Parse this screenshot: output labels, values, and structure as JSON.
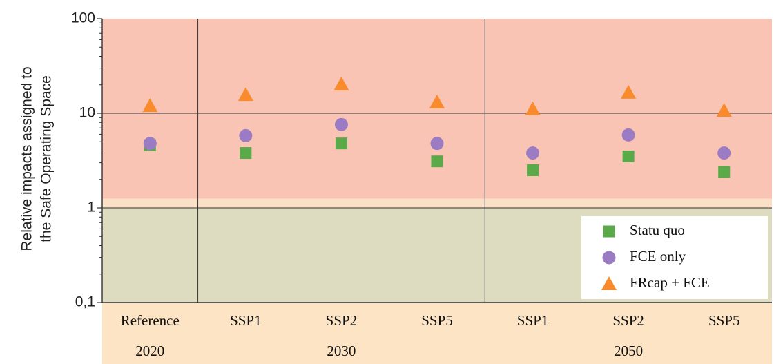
{
  "chart_data": {
    "type": "scatter",
    "ylabel": [
      "Relative impacts assigned to",
      "the Safe Operating Space"
    ],
    "groups": [
      {
        "name": "2020",
        "categories": [
          "Reference"
        ]
      },
      {
        "name": "2030",
        "categories": [
          "SSP1",
          "SSP2",
          "SSP5"
        ]
      },
      {
        "name": "2050",
        "categories": [
          "SSP1",
          "SSP2",
          "SSP5"
        ]
      }
    ],
    "series": [
      {
        "name": "Statu quo",
        "color": "#5aaa4a",
        "marker": "square",
        "values": [
          4.6,
          3.8,
          4.8,
          3.1,
          2.5,
          3.5,
          2.4
        ]
      },
      {
        "name": "FCE only",
        "color": "#9b7cc4",
        "marker": "circle",
        "values": [
          4.8,
          5.8,
          7.6,
          4.8,
          3.8,
          5.9,
          3.8
        ]
      },
      {
        "name": "FRcap  + FCE",
        "color": "#f98b2c",
        "marker": "triangle",
        "values": [
          12.0,
          15.7,
          20.3,
          13.1,
          11.1,
          16.6,
          10.7
        ]
      }
    ],
    "ylim": [
      0.1,
      100
    ],
    "yticks": [
      {
        "value": 0.1,
        "label": "0,1"
      },
      1,
      10,
      100
    ],
    "log_y": true,
    "grid": true,
    "bands": [
      {
        "from": 1.25,
        "to": 100,
        "color": "#f9c4b4"
      },
      {
        "from": 1,
        "to": 1.25,
        "color": "#fbe0c8"
      },
      {
        "from": 0.1,
        "to": 1,
        "color": "#dedcc0"
      }
    ],
    "category_background": "#fde4c4",
    "legend": "lower right"
  }
}
